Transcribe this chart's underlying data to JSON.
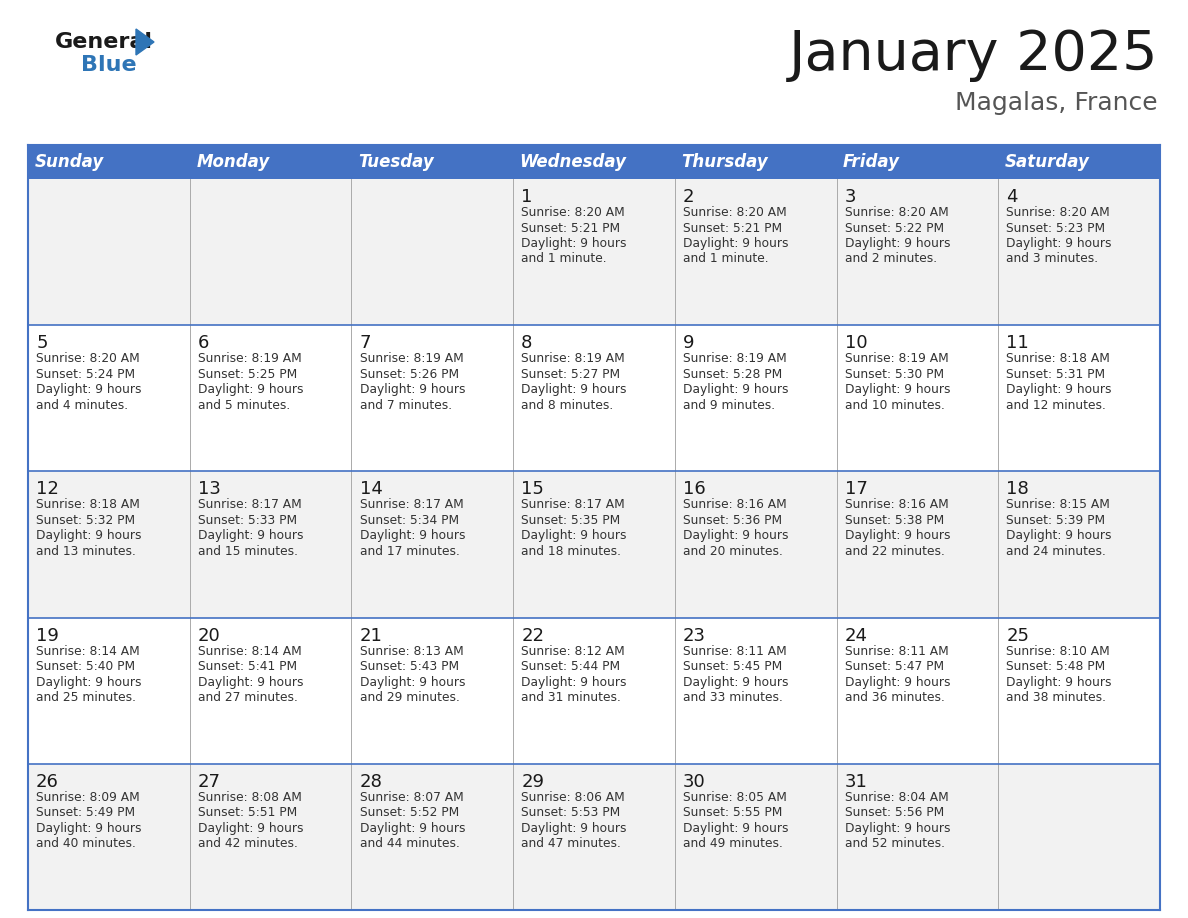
{
  "title": "January 2025",
  "subtitle": "Magalas, France",
  "header_color": "#4472C4",
  "header_text_color": "#FFFFFF",
  "border_color": "#4472C4",
  "day_headers": [
    "Sunday",
    "Monday",
    "Tuesday",
    "Wednesday",
    "Thursday",
    "Friday",
    "Saturday"
  ],
  "bg_color": "#FFFFFF",
  "cell_bg_alt": "#F2F2F2",
  "cell_bg_norm": "#FFFFFF",
  "title_color": "#1a1a1a",
  "subtitle_color": "#555555",
  "day_num_color": "#1a1a1a",
  "info_color": "#333333",
  "logo_black": "#1a1a1a",
  "logo_blue": "#2E75B6",
  "separator_color": "#AAAAAA",
  "days": [
    {
      "day": null,
      "col": 0,
      "row": 0,
      "sunrise": null,
      "sunset": null,
      "daylight": null
    },
    {
      "day": null,
      "col": 1,
      "row": 0,
      "sunrise": null,
      "sunset": null,
      "daylight": null
    },
    {
      "day": null,
      "col": 2,
      "row": 0,
      "sunrise": null,
      "sunset": null,
      "daylight": null
    },
    {
      "day": 1,
      "col": 3,
      "row": 0,
      "sunrise": "8:20 AM",
      "sunset": "5:21 PM",
      "daylight": "9 hours\nand 1 minute."
    },
    {
      "day": 2,
      "col": 4,
      "row": 0,
      "sunrise": "8:20 AM",
      "sunset": "5:21 PM",
      "daylight": "9 hours\nand 1 minute."
    },
    {
      "day": 3,
      "col": 5,
      "row": 0,
      "sunrise": "8:20 AM",
      "sunset": "5:22 PM",
      "daylight": "9 hours\nand 2 minutes."
    },
    {
      "day": 4,
      "col": 6,
      "row": 0,
      "sunrise": "8:20 AM",
      "sunset": "5:23 PM",
      "daylight": "9 hours\nand 3 minutes."
    },
    {
      "day": 5,
      "col": 0,
      "row": 1,
      "sunrise": "8:20 AM",
      "sunset": "5:24 PM",
      "daylight": "9 hours\nand 4 minutes."
    },
    {
      "day": 6,
      "col": 1,
      "row": 1,
      "sunrise": "8:19 AM",
      "sunset": "5:25 PM",
      "daylight": "9 hours\nand 5 minutes."
    },
    {
      "day": 7,
      "col": 2,
      "row": 1,
      "sunrise": "8:19 AM",
      "sunset": "5:26 PM",
      "daylight": "9 hours\nand 7 minutes."
    },
    {
      "day": 8,
      "col": 3,
      "row": 1,
      "sunrise": "8:19 AM",
      "sunset": "5:27 PM",
      "daylight": "9 hours\nand 8 minutes."
    },
    {
      "day": 9,
      "col": 4,
      "row": 1,
      "sunrise": "8:19 AM",
      "sunset": "5:28 PM",
      "daylight": "9 hours\nand 9 minutes."
    },
    {
      "day": 10,
      "col": 5,
      "row": 1,
      "sunrise": "8:19 AM",
      "sunset": "5:30 PM",
      "daylight": "9 hours\nand 10 minutes."
    },
    {
      "day": 11,
      "col": 6,
      "row": 1,
      "sunrise": "8:18 AM",
      "sunset": "5:31 PM",
      "daylight": "9 hours\nand 12 minutes."
    },
    {
      "day": 12,
      "col": 0,
      "row": 2,
      "sunrise": "8:18 AM",
      "sunset": "5:32 PM",
      "daylight": "9 hours\nand 13 minutes."
    },
    {
      "day": 13,
      "col": 1,
      "row": 2,
      "sunrise": "8:17 AM",
      "sunset": "5:33 PM",
      "daylight": "9 hours\nand 15 minutes."
    },
    {
      "day": 14,
      "col": 2,
      "row": 2,
      "sunrise": "8:17 AM",
      "sunset": "5:34 PM",
      "daylight": "9 hours\nand 17 minutes."
    },
    {
      "day": 15,
      "col": 3,
      "row": 2,
      "sunrise": "8:17 AM",
      "sunset": "5:35 PM",
      "daylight": "9 hours\nand 18 minutes."
    },
    {
      "day": 16,
      "col": 4,
      "row": 2,
      "sunrise": "8:16 AM",
      "sunset": "5:36 PM",
      "daylight": "9 hours\nand 20 minutes."
    },
    {
      "day": 17,
      "col": 5,
      "row": 2,
      "sunrise": "8:16 AM",
      "sunset": "5:38 PM",
      "daylight": "9 hours\nand 22 minutes."
    },
    {
      "day": 18,
      "col": 6,
      "row": 2,
      "sunrise": "8:15 AM",
      "sunset": "5:39 PM",
      "daylight": "9 hours\nand 24 minutes."
    },
    {
      "day": 19,
      "col": 0,
      "row": 3,
      "sunrise": "8:14 AM",
      "sunset": "5:40 PM",
      "daylight": "9 hours\nand 25 minutes."
    },
    {
      "day": 20,
      "col": 1,
      "row": 3,
      "sunrise": "8:14 AM",
      "sunset": "5:41 PM",
      "daylight": "9 hours\nand 27 minutes."
    },
    {
      "day": 21,
      "col": 2,
      "row": 3,
      "sunrise": "8:13 AM",
      "sunset": "5:43 PM",
      "daylight": "9 hours\nand 29 minutes."
    },
    {
      "day": 22,
      "col": 3,
      "row": 3,
      "sunrise": "8:12 AM",
      "sunset": "5:44 PM",
      "daylight": "9 hours\nand 31 minutes."
    },
    {
      "day": 23,
      "col": 4,
      "row": 3,
      "sunrise": "8:11 AM",
      "sunset": "5:45 PM",
      "daylight": "9 hours\nand 33 minutes."
    },
    {
      "day": 24,
      "col": 5,
      "row": 3,
      "sunrise": "8:11 AM",
      "sunset": "5:47 PM",
      "daylight": "9 hours\nand 36 minutes."
    },
    {
      "day": 25,
      "col": 6,
      "row": 3,
      "sunrise": "8:10 AM",
      "sunset": "5:48 PM",
      "daylight": "9 hours\nand 38 minutes."
    },
    {
      "day": 26,
      "col": 0,
      "row": 4,
      "sunrise": "8:09 AM",
      "sunset": "5:49 PM",
      "daylight": "9 hours\nand 40 minutes."
    },
    {
      "day": 27,
      "col": 1,
      "row": 4,
      "sunrise": "8:08 AM",
      "sunset": "5:51 PM",
      "daylight": "9 hours\nand 42 minutes."
    },
    {
      "day": 28,
      "col": 2,
      "row": 4,
      "sunrise": "8:07 AM",
      "sunset": "5:52 PM",
      "daylight": "9 hours\nand 44 minutes."
    },
    {
      "day": 29,
      "col": 3,
      "row": 4,
      "sunrise": "8:06 AM",
      "sunset": "5:53 PM",
      "daylight": "9 hours\nand 47 minutes."
    },
    {
      "day": 30,
      "col": 4,
      "row": 4,
      "sunrise": "8:05 AM",
      "sunset": "5:55 PM",
      "daylight": "9 hours\nand 49 minutes."
    },
    {
      "day": 31,
      "col": 5,
      "row": 4,
      "sunrise": "8:04 AM",
      "sunset": "5:56 PM",
      "daylight": "9 hours\nand 52 minutes."
    },
    {
      "day": null,
      "col": 6,
      "row": 4,
      "sunrise": null,
      "sunset": null,
      "daylight": null
    }
  ]
}
